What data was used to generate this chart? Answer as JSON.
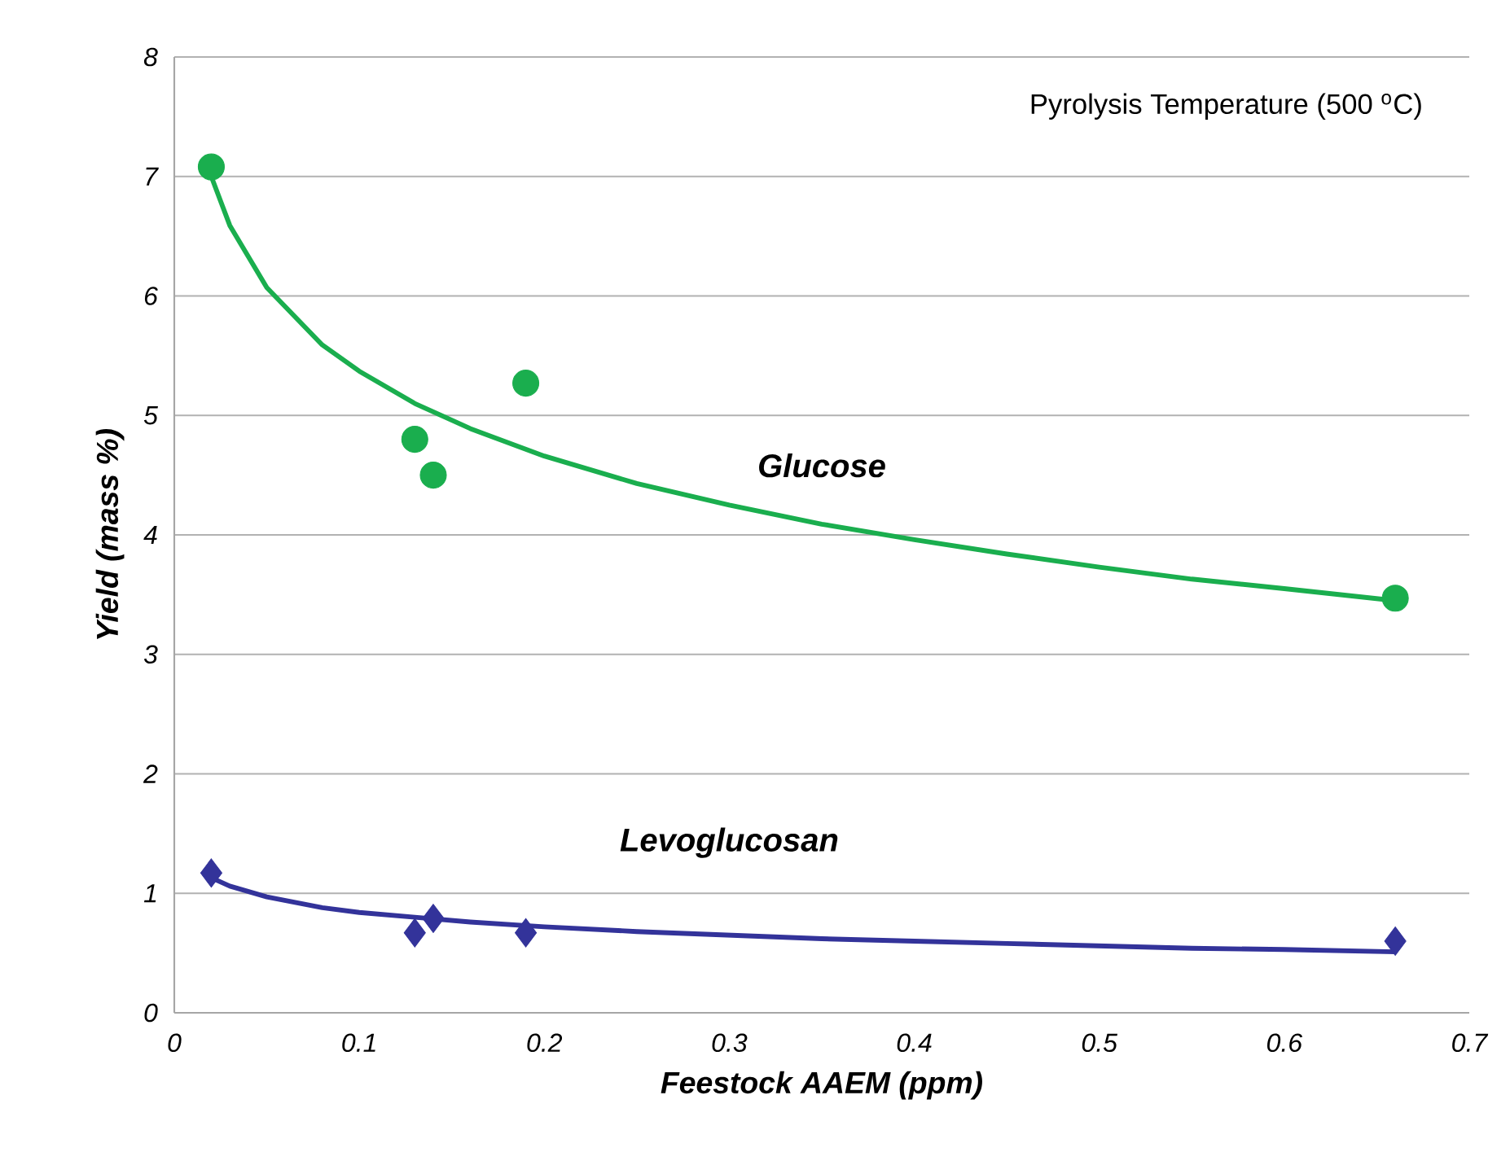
{
  "chart_data": {
    "type": "scatter",
    "xlabel": "Feestock AAEM (ppm)",
    "ylabel": "Yield (mass %)",
    "xlim": [
      0,
      0.7
    ],
    "xticks": [
      0,
      0.1,
      0.2,
      0.3,
      0.4,
      0.5,
      0.6,
      0.7
    ],
    "ylim": [
      0,
      8
    ],
    "yticks": [
      0,
      1,
      2,
      3,
      4,
      5,
      6,
      7,
      8
    ],
    "grid": "y",
    "annotations": [
      "Pyrolysis Temperature (500 $^{o}$C)"
    ],
    "series": [
      {
        "marker": "circle",
        "color": "#1aae4e",
        "x": [
          0.02,
          0.13,
          0.14,
          0.19,
          0.66
        ],
        "values": [
          7.08,
          4.8,
          4.5,
          5.27,
          3.47
        ]
      },
      {
        "marker": "diamond",
        "color": "#33339a",
        "x": [
          0.02,
          0.13,
          0.14,
          0.19,
          0.66
        ],
        "values": [
          1.17,
          0.67,
          0.79,
          0.67,
          0.6
        ]
      },
      {
        "name": "Glucose",
        "type": "line",
        "marker": "none",
        "line_style": "solid",
        "color": "#1aae4e",
        "x": [
          0.02,
          0.03,
          0.05,
          0.08,
          0.1,
          0.13,
          0.16,
          0.2,
          0.25,
          0.3,
          0.35,
          0.4,
          0.45,
          0.5,
          0.55,
          0.6,
          0.66
        ],
        "values": [
          7.0,
          6.59,
          6.07,
          5.59,
          5.37,
          5.1,
          4.89,
          4.66,
          4.43,
          4.25,
          4.09,
          3.96,
          3.84,
          3.73,
          3.63,
          3.55,
          3.45
        ]
      },
      {
        "name": "Levoglucosan",
        "type": "line",
        "marker": "none",
        "line_style": "solid",
        "color": "#33339a",
        "x": [
          0.02,
          0.03,
          0.05,
          0.08,
          0.1,
          0.13,
          0.16,
          0.2,
          0.25,
          0.3,
          0.35,
          0.4,
          0.45,
          0.5,
          0.55,
          0.6,
          0.66
        ],
        "values": [
          1.13,
          1.06,
          0.97,
          0.88,
          0.84,
          0.8,
          0.76,
          0.72,
          0.68,
          0.65,
          0.62,
          0.6,
          0.58,
          0.56,
          0.54,
          0.53,
          0.51
        ]
      }
    ]
  }
}
